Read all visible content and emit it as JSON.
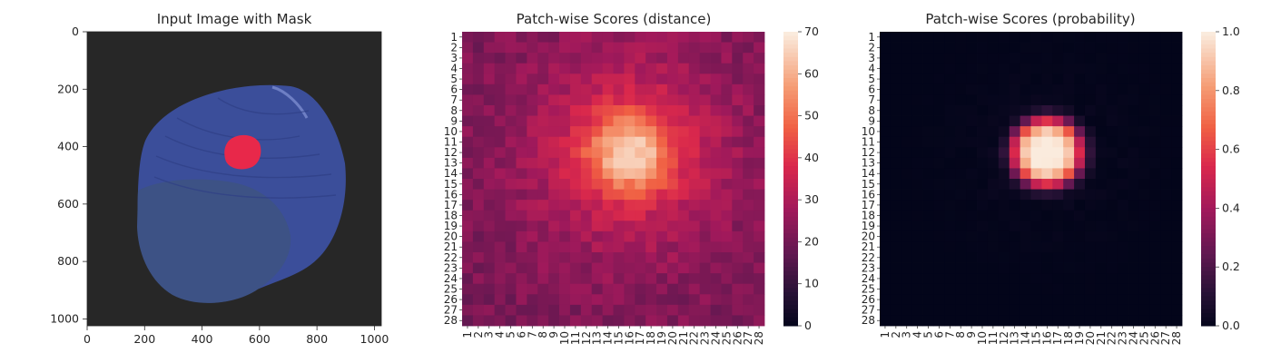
{
  "chart_data": [
    {
      "type": "image",
      "title": "Input Image with Mask",
      "xticks": [
        "0",
        "200",
        "400",
        "600",
        "800",
        "1000"
      ],
      "xtick_values": [
        0,
        200,
        400,
        600,
        800,
        1000
      ],
      "yticks": [
        "0",
        "200",
        "400",
        "600",
        "800",
        "1000"
      ],
      "ytick_values": [
        0,
        200,
        400,
        600,
        800,
        1000
      ],
      "xlim": [
        0,
        1024
      ],
      "ylim": [
        0,
        1024
      ],
      "mask_color": "#e8284a",
      "object_color": "#3c4f9c",
      "background_color": "#272727"
    },
    {
      "type": "heatmap",
      "title": "Patch-wise Scores (distance)",
      "rows": 28,
      "cols": 28,
      "row_labels": [
        "1",
        "2",
        "3",
        "4",
        "5",
        "6",
        "7",
        "8",
        "9",
        "10",
        "11",
        "12",
        "13",
        "14",
        "15",
        "16",
        "17",
        "18",
        "19",
        "20",
        "21",
        "22",
        "23",
        "24",
        "25",
        "26",
        "27",
        "28"
      ],
      "col_labels": [
        "1",
        "2",
        "3",
        "4",
        "5",
        "6",
        "7",
        "8",
        "9",
        "10",
        "11",
        "12",
        "13",
        "14",
        "15",
        "16",
        "17",
        "18",
        "19",
        "20",
        "21",
        "22",
        "23",
        "24",
        "25",
        "26",
        "27",
        "28"
      ],
      "hotspot": {
        "row": 12,
        "col": 16,
        "peak": 68,
        "spread": 2.6
      },
      "base_value": 22,
      "colorbar": {
        "min": 0,
        "max": 70,
        "ticks": [
          "0",
          "10",
          "20",
          "30",
          "40",
          "50",
          "60",
          "70"
        ],
        "tick_values": [
          0,
          10,
          20,
          30,
          40,
          50,
          60,
          70
        ]
      },
      "colormap": "rocket"
    },
    {
      "type": "heatmap",
      "title": "Patch-wise Scores (probability)",
      "rows": 28,
      "cols": 28,
      "row_labels": [
        "1",
        "2",
        "3",
        "4",
        "5",
        "6",
        "7",
        "8",
        "9",
        "10",
        "11",
        "12",
        "13",
        "14",
        "15",
        "16",
        "17",
        "18",
        "19",
        "20",
        "21",
        "22",
        "23",
        "24",
        "25",
        "26",
        "27",
        "28"
      ],
      "col_labels": [
        "1",
        "2",
        "3",
        "4",
        "5",
        "6",
        "7",
        "8",
        "9",
        "10",
        "11",
        "12",
        "13",
        "14",
        "15",
        "16",
        "17",
        "18",
        "19",
        "20",
        "21",
        "22",
        "23",
        "24",
        "25",
        "26",
        "27",
        "28"
      ],
      "hotspot": {
        "row": 12,
        "col": 16,
        "peak": 1.0,
        "spread": 1.6
      },
      "base_value": 0.0,
      "colorbar": {
        "min": 0,
        "max": 1,
        "ticks": [
          "0.0",
          "0.2",
          "0.4",
          "0.6",
          "0.8",
          "1.0"
        ],
        "tick_values": [
          0,
          0.2,
          0.4,
          0.6,
          0.8,
          1.0
        ]
      },
      "colormap": "rocket"
    }
  ]
}
